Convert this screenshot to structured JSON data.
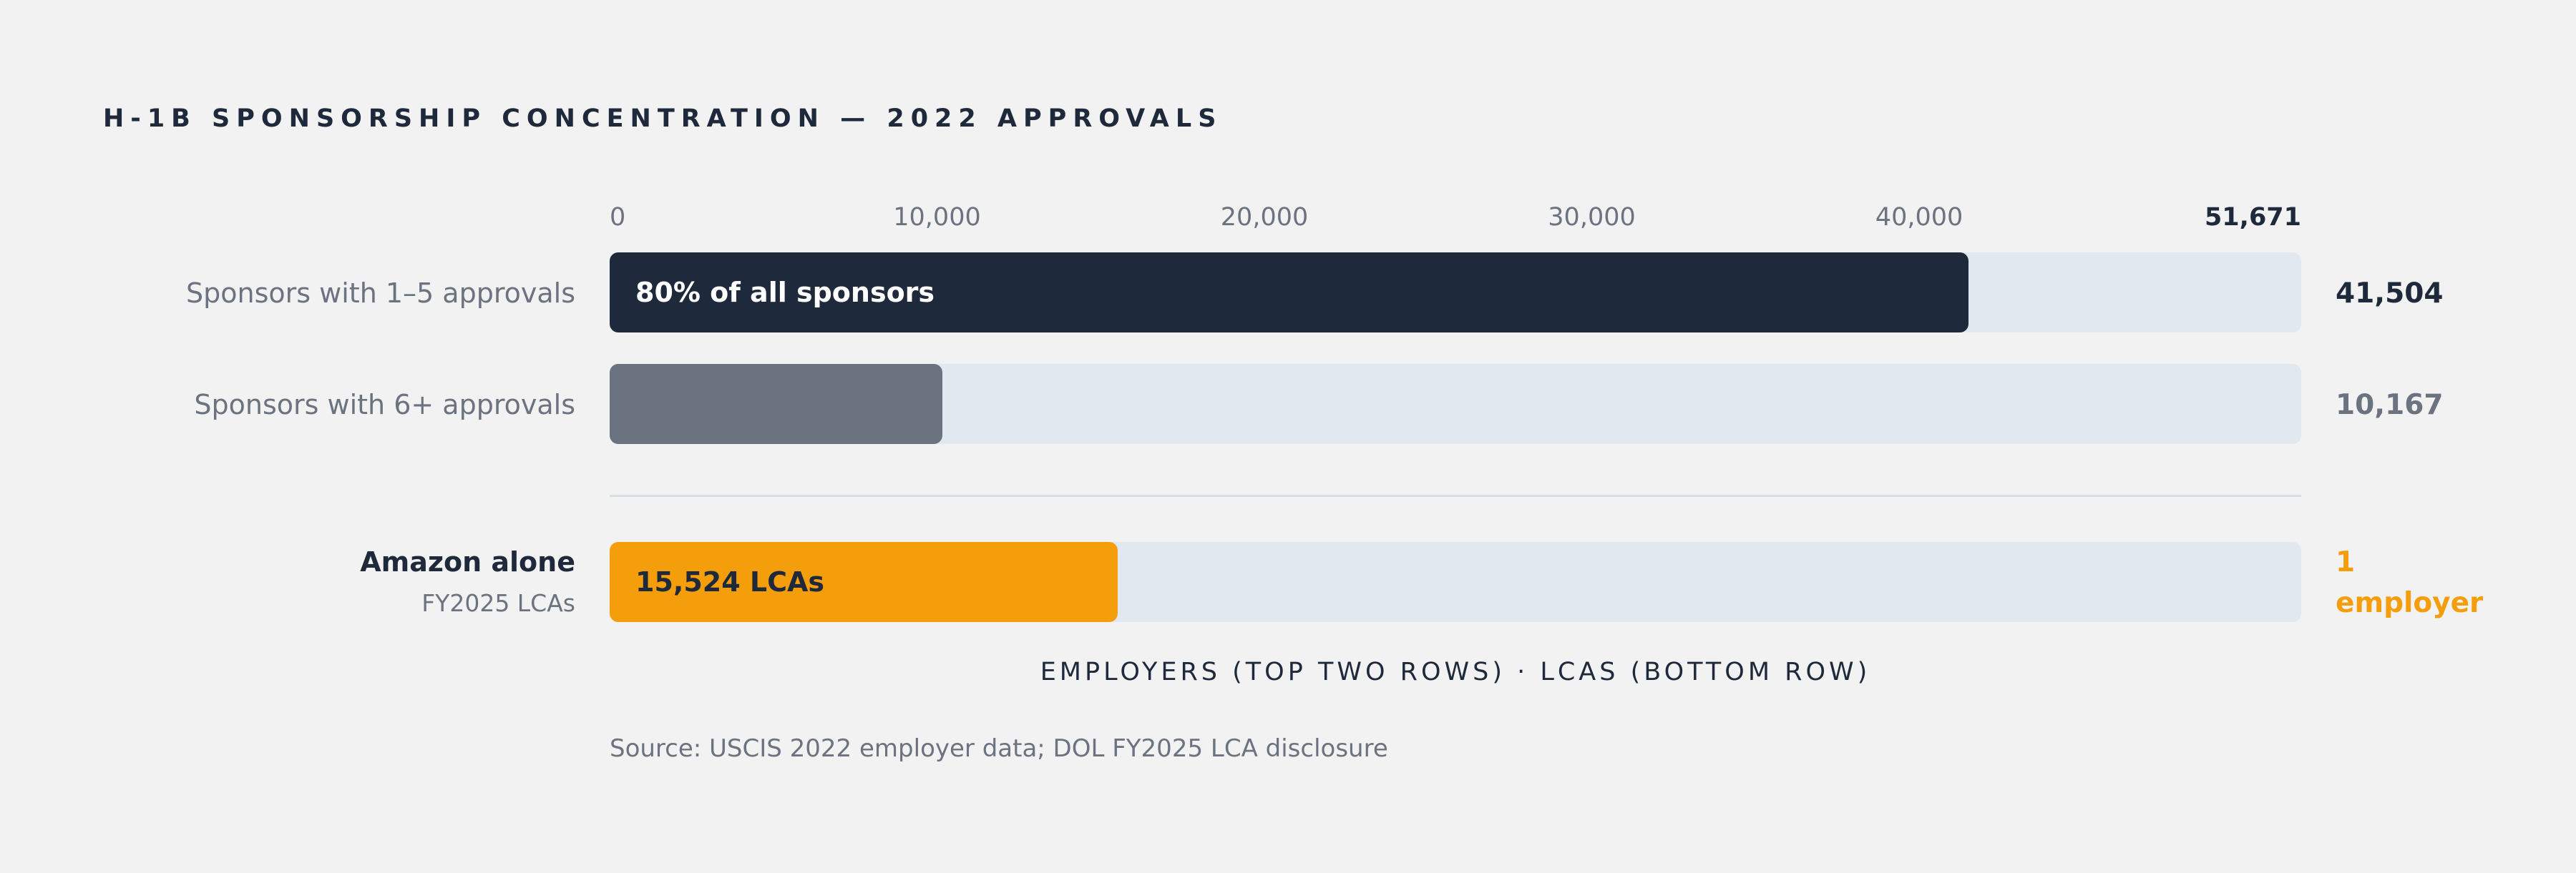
{
  "chart_data": {
    "type": "bar",
    "orientation": "horizontal",
    "title": "H-1B SPONSORSHIP CONCENTRATION — 2022 APPROVALS",
    "xlim": [
      0,
      51671
    ],
    "ticks": [
      "0",
      "10,000",
      "20,000",
      "30,000",
      "40,000",
      "51,671"
    ],
    "tick_values": [
      0,
      10000,
      20000,
      30000,
      40000,
      51671
    ],
    "rows": [
      {
        "label": "Sponsors with 1–5 approvals",
        "value": 41504,
        "value_label": "41,504",
        "inner_label": "80% of all sponsors",
        "color": "#1e293b",
        "value_color": "#1e293b",
        "inner_color": "#ffffff"
      },
      {
        "label": "Sponsors with 6+ approvals",
        "value": 10167,
        "value_label": "10,167",
        "inner_label": "",
        "color": "#6b7280",
        "value_color": "#6b7280",
        "inner_color": "#ffffff"
      },
      {
        "label": "Amazon alone",
        "sublabel": "FY2025 LCAs",
        "value": 15524,
        "value_label": "1 employer",
        "value_lines": [
          "1",
          "employer"
        ],
        "inner_label": "15,524 LCAs",
        "color": "#f59e0b",
        "value_color": "#f59e0b",
        "inner_color": "#1e293b"
      }
    ],
    "xlabel": "EMPLOYERS (TOP TWO ROWS) · LCAS (BOTTOM ROW)",
    "source": "Source: USCIS 2022 employer data; DOL FY2025 LCA disclosure",
    "track_color": "#e2e8f0"
  }
}
